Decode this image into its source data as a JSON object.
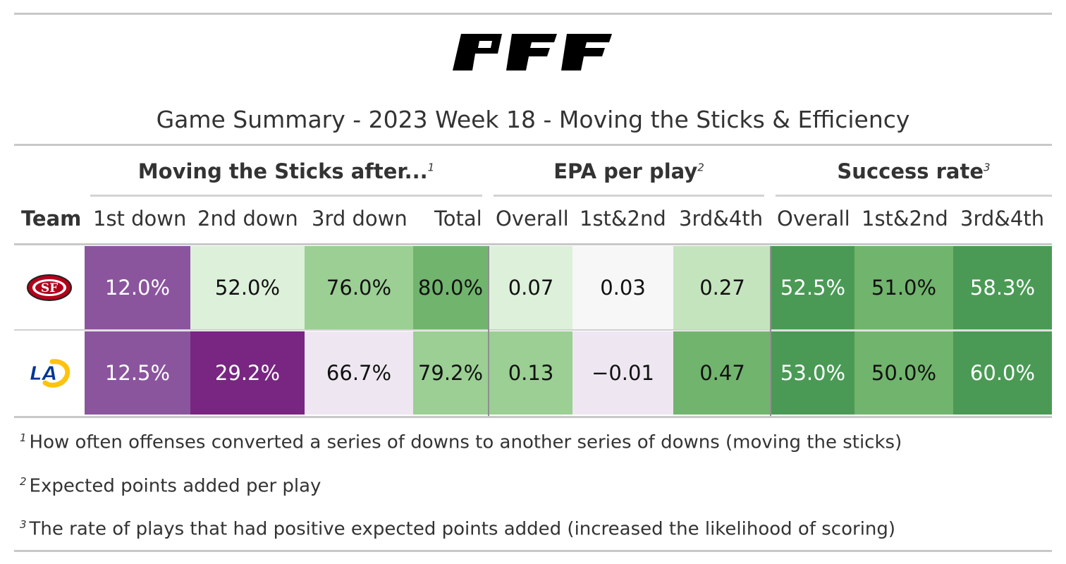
{
  "header": {
    "brand": "PFF",
    "title": "Game Summary - 2023 Week 18 - Moving the Sticks & Efficiency"
  },
  "spanners": [
    {
      "label": "Moving the Sticks after...",
      "footnote_mark": "1"
    },
    {
      "label": "EPA per play",
      "footnote_mark": "2"
    },
    {
      "label": "Success rate",
      "footnote_mark": "3"
    }
  ],
  "columns": [
    "Team",
    "1st down",
    "2nd down",
    "3rd down",
    "Total",
    "Overall",
    "1st&2nd",
    "3rd&4th",
    "Overall",
    "1st&2nd",
    "3rd&4th"
  ],
  "rows": [
    {
      "team_logo": "49ers-logo-icon",
      "values": [
        "12.0%",
        "52.0%",
        "76.0%",
        "80.0%",
        "0.07",
        "0.03",
        "0.27",
        "52.5%",
        "51.0%",
        "58.3%"
      ],
      "colors": [
        "#8b559e",
        "#dcf0da",
        "#9bcf94",
        "#71b46d",
        "#dcf0da",
        "#f7f7f7",
        "#c4e4bd",
        "#4a9a55",
        "#71b46d",
        "#4a9a55"
      ],
      "text_colors": [
        "#ffffff",
        "#111111",
        "#111111",
        "#111111",
        "#111111",
        "#111111",
        "#111111",
        "#ffffff",
        "#111111",
        "#ffffff"
      ]
    },
    {
      "team_logo": "rams-logo-icon",
      "values": [
        "12.5%",
        "29.2%",
        "66.7%",
        "79.2%",
        "0.13",
        "−0.01",
        "0.47",
        "53.0%",
        "50.0%",
        "60.0%"
      ],
      "colors": [
        "#8b559e",
        "#782681",
        "#eee7f1",
        "#9bcf94",
        "#9bcf94",
        "#eee7f1",
        "#71b46d",
        "#4a9a55",
        "#71b46d",
        "#4a9a55"
      ],
      "text_colors": [
        "#ffffff",
        "#ffffff",
        "#111111",
        "#111111",
        "#111111",
        "#111111",
        "#111111",
        "#ffffff",
        "#111111",
        "#ffffff"
      ]
    }
  ],
  "footnotes": [
    {
      "mark": "1",
      "text": "How often offenses converted a series of downs to another series of downs (moving the sticks)"
    },
    {
      "mark": "2",
      "text": "Expected points added per play"
    },
    {
      "mark": "3",
      "text": "The rate of plays that had positive expected points added (increased the likelihood of scoring)"
    }
  ]
}
